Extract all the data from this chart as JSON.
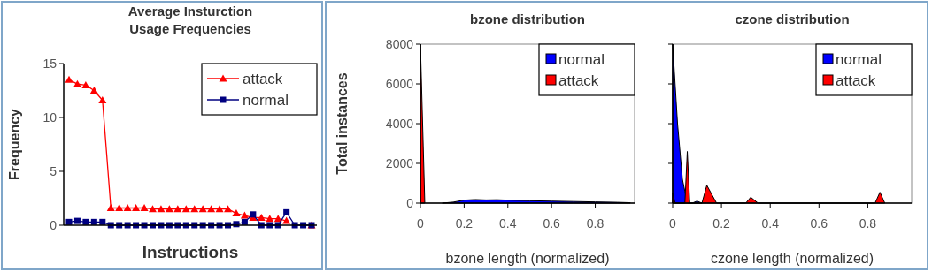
{
  "chart_data": [
    {
      "type": "line",
      "title": "Average Insturction Usage Frequencies",
      "xlabel": "Instructions",
      "ylabel": "Frequency",
      "categories": [
        null,
        null,
        null,
        null,
        null,
        null,
        null,
        null,
        null,
        null,
        null,
        null,
        null,
        null,
        null,
        null,
        null,
        null,
        null,
        null,
        null,
        null,
        null,
        null,
        null,
        null,
        null,
        null,
        null,
        null
      ],
      "series": [
        {
          "name": "attack",
          "color": "#ff0000",
          "marker": "triangle",
          "values": [
            13.5,
            13.1,
            13.0,
            12.5,
            11.6,
            1.6,
            1.6,
            1.6,
            1.6,
            1.6,
            1.5,
            1.5,
            1.5,
            1.5,
            1.5,
            1.5,
            1.5,
            1.5,
            1.5,
            1.5,
            1.1,
            0.9,
            0.7,
            0.7,
            0.6,
            0.6,
            0.4,
            null,
            null,
            0.0
          ]
        },
        {
          "name": "normal",
          "color": "#000080",
          "marker": "square",
          "values": [
            0.3,
            0.4,
            0.3,
            0.3,
            0.3,
            0,
            0,
            0,
            0,
            0,
            0,
            0,
            0,
            0,
            0,
            0,
            0,
            0,
            0,
            0,
            0.1,
            0.3,
            1.0,
            0,
            0,
            0,
            1.2,
            0,
            0,
            0
          ]
        }
      ],
      "ylim": [
        0,
        15
      ],
      "yticks": [
        0,
        5,
        10,
        15
      ],
      "legend": "top right",
      "grid": false
    },
    {
      "type": "area",
      "title": "bzone distribution",
      "xlabel": "bzone length (normalized)",
      "ylabel": "Total instances",
      "series": [
        {
          "name": "normal",
          "color": "#0000ff",
          "x": [
            0.1,
            0.15,
            0.2,
            0.25,
            0.3,
            0.35,
            0.4,
            0.5,
            0.6,
            0.7,
            0.8,
            0.9,
            0.96
          ],
          "values": [
            0,
            50,
            150,
            180,
            160,
            170,
            150,
            120,
            100,
            80,
            60,
            40,
            20
          ]
        },
        {
          "name": "attack",
          "color": "#ff0000",
          "x": [
            0,
            0.02
          ],
          "values": [
            8000,
            0
          ]
        }
      ],
      "xlim": [
        0,
        0.98
      ],
      "xticks": [
        0,
        0.2,
        0.4,
        0.6,
        0.8
      ],
      "ylim": [
        0,
        8000
      ],
      "yticks": [
        0,
        2000,
        4000,
        6000,
        8000
      ],
      "legend": "top right",
      "grid": false
    },
    {
      "type": "area",
      "title": "czone distribution",
      "xlabel": "czone length (normalized)",
      "series": [
        {
          "name": "normal",
          "color": "#0000ff",
          "x": [
            0,
            0.02,
            0.04,
            0.06,
            0.08,
            0.1,
            0.12
          ],
          "values": [
            8000,
            4000,
            1200,
            0,
            0,
            100,
            0
          ]
        },
        {
          "name": "attack",
          "color": "#ff0000",
          "x": [
            0,
            0.01,
            0.05,
            0.06,
            0.07,
            0.12,
            0.14,
            0.18,
            0.3,
            0.32,
            0.35,
            0.83,
            0.85,
            0.87
          ],
          "values": [
            500,
            0,
            0,
            2600,
            0,
            0,
            900,
            0,
            0,
            300,
            0,
            0,
            550,
            0
          ]
        }
      ],
      "xlim": [
        0,
        0.98
      ],
      "xticks": [
        0,
        0.2,
        0.4,
        0.6,
        0.8
      ],
      "ylim": [
        0,
        8000
      ],
      "yticks": [
        0,
        2000,
        4000,
        6000,
        8000
      ],
      "tick_labels": "x",
      "legend": "top right",
      "grid": false
    }
  ]
}
